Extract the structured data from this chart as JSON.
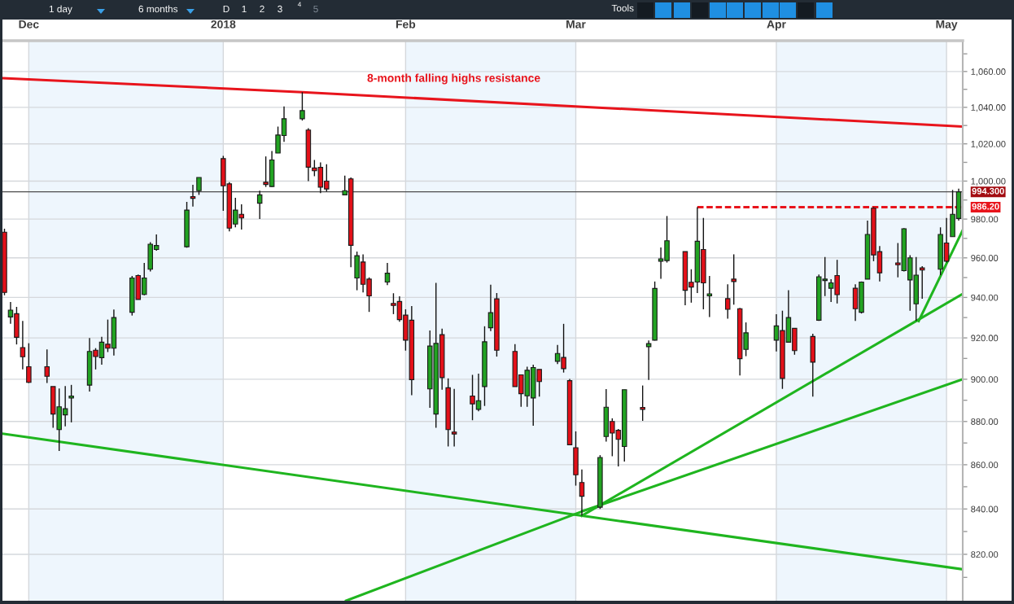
{
  "chart_data": {
    "type": "candlestick",
    "log": true,
    "grid": true,
    "annotations": [
      "1 day",
      "6 months",
      "D",
      "1",
      "2",
      "3",
      "4",
      "5",
      "Tools"
    ],
    "x": [
      "2017-11-27",
      "2017-11-28",
      "2017-11-29",
      "2017-11-30",
      "2017-12-01",
      "2017-12-04",
      "2017-12-05",
      "2017-12-06",
      "2017-12-07",
      "2017-12-08",
      "2017-12-11",
      "2017-12-12",
      "2017-12-13",
      "2017-12-14",
      "2017-12-15",
      "2017-12-18",
      "2017-12-19",
      "2017-12-20",
      "2017-12-21",
      "2017-12-22",
      "2017-12-27",
      "2017-12-28",
      "2017-12-29",
      "2018-01-02",
      "2018-01-03",
      "2018-01-04",
      "2018-01-05",
      "2018-01-08",
      "2018-01-09",
      "2018-01-10",
      "2018-01-11",
      "2018-01-12",
      "2018-01-15",
      "2018-01-16",
      "2018-01-17",
      "2018-01-18",
      "2018-01-19",
      "2018-01-22",
      "2018-01-23",
      "2018-01-24",
      "2018-01-25",
      "2018-01-26",
      "2018-01-29",
      "2018-01-30",
      "2018-01-31",
      "2018-02-01",
      "2018-02-02",
      "2018-02-05",
      "2018-02-06",
      "2018-02-07",
      "2018-02-08",
      "2018-02-09",
      "2018-02-12",
      "2018-02-13",
      "2018-02-14",
      "2018-02-15",
      "2018-02-16",
      "2018-02-19",
      "2018-02-20",
      "2018-02-21",
      "2018-02-22",
      "2018-02-23",
      "2018-02-26",
      "2018-02-27",
      "2018-02-28",
      "2018-03-01",
      "2018-03-02",
      "2018-03-05",
      "2018-03-06",
      "2018-03-07",
      "2018-03-08",
      "2018-03-09",
      "2018-03-12",
      "2018-03-13",
      "2018-03-14",
      "2018-03-15",
      "2018-03-16",
      "2018-03-19",
      "2018-03-20",
      "2018-03-21",
      "2018-03-22",
      "2018-03-23",
      "2018-03-26",
      "2018-03-27",
      "2018-03-28",
      "2018-03-29",
      "2018-04-03",
      "2018-04-04",
      "2018-04-05",
      "2018-04-06",
      "2018-04-09",
      "2018-04-10",
      "2018-04-11",
      "2018-04-12",
      "2018-04-13",
      "2018-04-16",
      "2018-04-17",
      "2018-04-18",
      "2018-04-19",
      "2018-04-20",
      "2018-04-23",
      "2018-04-24",
      "2018-04-25",
      "2018-04-26",
      "2018-04-27",
      "2018-04-30",
      "2018-05-01",
      "2018-05-02",
      "2018-05-03"
    ],
    "ohlc": [
      [
        973.2,
        975.0,
        941.1,
        942.5
      ],
      [
        930.3,
        937.7,
        926.9,
        933.7
      ],
      [
        931.9,
        935.3,
        916.8,
        920.3
      ],
      [
        915.3,
        928.3,
        904.7,
        910.8
      ],
      [
        906.0,
        917.4,
        898.2,
        898.5
      ],
      [
        906.0,
        914.4,
        898.2,
        901.4
      ],
      [
        896.5,
        896.5,
        877.1,
        883.5
      ],
      [
        876.2,
        895.6,
        866.3,
        886.9
      ],
      [
        883.1,
        896.7,
        877.7,
        886.0
      ],
      [
        891.1,
        897.3,
        879.6,
        892.0
      ],
      [
        897.2,
        919.9,
        894.1,
        913.4
      ],
      [
        914.0,
        915.0,
        904.7,
        910.9
      ],
      [
        910.4,
        920.5,
        907.0,
        917.9
      ],
      [
        916.9,
        929.0,
        913.1,
        915.0
      ],
      [
        915.0,
        934.0,
        911.4,
        930.0
      ],
      [
        932.6,
        950.8,
        931.0,
        949.8
      ],
      [
        951.0,
        951.5,
        939.0,
        939.0
      ],
      [
        941.5,
        957.4,
        941.1,
        949.8
      ],
      [
        954.2,
        968.0,
        953.1,
        967.0
      ],
      [
        964.3,
        972.0,
        963.6,
        966.3
      ],
      [
        965.7,
        989.0,
        965.2,
        984.7
      ],
      [
        991.8,
        998.0,
        986.5,
        990.9
      ],
      [
        994.9,
        1001.9,
        992.7,
        1001.9
      ],
      [
        1012.0,
        1013.5,
        984.3,
        997.5
      ],
      [
        998.5,
        999.4,
        973.6,
        975.3
      ],
      [
        977.4,
        991.2,
        975.7,
        984.7
      ],
      [
        982.5,
        987.7,
        974.6,
        980.6
      ],
      [
        988.3,
        994.9,
        980.1,
        992.7
      ],
      [
        999.4,
        1013.2,
        996.9,
        998.2
      ],
      [
        997.1,
        1016.1,
        996.9,
        1011.3
      ],
      [
        1015.0,
        1029.4,
        1015.0,
        1024.8
      ],
      [
        1024.5,
        1040.5,
        1021.1,
        1033.7
      ],
      [
        1033.7,
        1048.4,
        1032.7,
        1038.2
      ],
      [
        1027.5,
        1028.5,
        1000.0,
        1007.4
      ],
      [
        1007.0,
        1011.3,
        1002.6,
        1005.5
      ],
      [
        1007.3,
        1010.0,
        993.6,
        996.8
      ],
      [
        1000.0,
        1009.0,
        994.5,
        995.8
      ],
      [
        992.7,
        1002.9,
        992.7,
        994.9
      ],
      [
        1001.2,
        1001.9,
        955.2,
        966.4
      ],
      [
        949.8,
        963.2,
        943.6,
        961.1
      ],
      [
        957.9,
        961.8,
        942.5,
        946.6
      ],
      [
        949.2,
        950.1,
        932.8,
        940.8
      ],
      [
        947.7,
        957.4,
        946.2,
        952.2
      ],
      [
        937.0,
        942.1,
        931.7,
        936.0
      ],
      [
        938.0,
        940.6,
        927.9,
        929.0
      ],
      [
        931.2,
        934.1,
        913.8,
        918.9
      ],
      [
        928.7,
        935.7,
        892.4,
        899.8
      ],
      [
        895.4,
        923.6,
        886.4,
        916.0
      ],
      [
        883.5,
        947.3,
        877.1,
        917.3
      ],
      [
        921.6,
        924.5,
        895.0,
        900.8
      ],
      [
        895.9,
        900.4,
        868.4,
        876.2
      ],
      [
        875.1,
        895.4,
        868.4,
        874.2
      ],
      [
        892.0,
        902.1,
        880.6,
        888.3
      ],
      [
        885.7,
        902.7,
        884.8,
        889.8
      ],
      [
        896.5,
        925.7,
        887.3,
        918.1
      ],
      [
        925.0,
        946.4,
        923.3,
        932.4
      ],
      [
        939.3,
        942.2,
        910.9,
        914.0
      ],
      [
        913.4,
        917.0,
        896.5,
        896.5
      ],
      [
        902.1,
        902.1,
        886.9,
        893.1
      ],
      [
        892.1,
        906.0,
        886.9,
        904.3
      ],
      [
        891.1,
        907.0,
        878.0,
        905.6
      ],
      [
        904.7,
        904.7,
        891.7,
        898.9
      ],
      [
        908.6,
        916.6,
        907.3,
        912.4
      ],
      [
        910.5,
        926.9,
        903.2,
        905.1
      ],
      [
        899.3,
        900.1,
        869.2,
        869.2
      ],
      [
        867.8,
        875.4,
        850.5,
        855.4
      ],
      [
        851.9,
        857.8,
        837.0,
        845.7
      ],
      [
        840.8,
        864.4,
        840.0,
        863.3
      ],
      [
        873.0,
        895.3,
        870.6,
        886.7
      ],
      [
        880.0,
        881.5,
        863.9,
        874.6
      ],
      [
        875.9,
        876.5,
        859.2,
        871.7
      ],
      [
        868.4,
        895.0,
        861.5,
        895.0
      ],
      [
        886.6,
        897.0,
        880.3,
        885.7
      ],
      [
        915.7,
        918.7,
        899.7,
        917.2
      ],
      [
        918.9,
        948.0,
        918.7,
        944.5
      ],
      [
        958.3,
        965.3,
        949.4,
        959.5
      ],
      [
        958.6,
        981.6,
        957.6,
        968.8
      ],
      [
        963.2,
        963.2,
        936.1,
        943.6
      ],
      [
        947.6,
        954.2,
        937.4,
        945.2
      ],
      [
        947.7,
        986.2,
        942.2,
        968.5
      ],
      [
        964.3,
        980.6,
        934.1,
        947.3
      ],
      [
        940.8,
        950.8,
        930.3,
        941.8
      ],
      [
        939.4,
        946.6,
        929.4,
        934.1
      ],
      [
        949.2,
        961.8,
        936.4,
        948.0
      ],
      [
        934.4,
        934.8,
        901.8,
        909.9
      ],
      [
        914.4,
        927.6,
        911.1,
        922.5
      ],
      [
        918.9,
        931.7,
        913.4,
        925.9
      ],
      [
        923.6,
        933.4,
        895.4,
        900.4
      ],
      [
        917.9,
        943.6,
        917.9,
        930.0
      ],
      [
        924.7,
        924.7,
        911.8,
        913.8
      ],
      [
        920.7,
        922.0,
        891.7,
        908.2
      ],
      [
        928.7,
        951.5,
        928.3,
        950.4
      ],
      [
        948.5,
        960.4,
        940.7,
        949.2
      ],
      [
        944.6,
        949.2,
        937.7,
        947.3
      ],
      [
        951.0,
        959.0,
        937.0,
        941.4
      ],
      [
        944.6,
        946.6,
        928.3,
        934.4
      ],
      [
        932.6,
        948.0,
        932.0,
        947.7
      ],
      [
        949.2,
        979.2,
        949.2,
        972.0
      ],
      [
        985.7,
        986.2,
        958.3,
        961.5
      ],
      [
        963.2,
        966.0,
        948.0,
        952.4
      ],
      [
        957.4,
        967.6,
        950.1,
        956.5
      ],
      [
        953.5,
        975.3,
        953.1,
        975.0
      ],
      [
        948.8,
        961.4,
        933.4,
        960.0
      ],
      [
        936.8,
        960.4,
        928.3,
        951.2
      ],
      [
        954.9,
        955.8,
        939.4,
        953.8
      ],
      [
        954.2,
        975.7,
        951.2,
        972.0
      ],
      [
        967.6,
        980.6,
        957.6,
        958.3
      ],
      [
        970.9,
        995.3,
        970.9,
        982.5
      ],
      [
        980.3,
        996.0,
        979.2,
        994.3
      ]
    ],
    "colors": [
      "#e31019",
      "#22a322",
      "#e31019",
      "#e31019",
      "#e31019",
      "#e31019",
      "#e31019",
      "#22a322",
      "#22a322",
      "#22a322",
      "#22a322",
      "#e31019",
      "#22a322",
      "#e31019",
      "#22a322",
      "#22a322",
      "#e31019",
      "#22a322",
      "#22a322",
      "#22a322",
      "#22a322",
      "#e31019",
      "#22a322",
      "#e31019",
      "#e31019",
      "#22a322",
      "#e31019",
      "#22a322",
      "#e31019",
      "#22a322",
      "#22a322",
      "#22a322",
      "#22a322",
      "#e31019",
      "#e31019",
      "#e31019",
      "#e31019",
      "#22a322",
      "#e31019",
      "#22a322",
      "#e31019",
      "#e31019",
      "#22a322",
      "#e31019",
      "#e31019",
      "#e31019",
      "#e31019",
      "#22a322",
      "#22a322",
      "#e31019",
      "#e31019",
      "#e31019",
      "#e31019",
      "#22a322",
      "#22a322",
      "#22a322",
      "#e31019",
      "#e31019",
      "#e31019",
      "#22a322",
      "#22a322",
      "#e31019",
      "#22a322",
      "#e31019",
      "#e31019",
      "#e31019",
      "#e31019",
      "#22a322",
      "#22a322",
      "#e31019",
      "#e31019",
      "#22a322",
      "#e31019",
      "#22a322",
      "#22a322",
      "#22a322",
      "#22a322",
      "#e31019",
      "#e31019",
      "#22a322",
      "#e31019",
      "#22a322",
      "#e31019",
      "#e31019",
      "#e31019",
      "#22a322",
      "#22a322",
      "#e31019",
      "#22a322",
      "#e31019",
      "#e31019",
      "#22a322",
      "#22a322",
      "#22a322",
      "#e31019",
      "#e31019",
      "#22a322",
      "#22a322",
      "#e31019",
      "#e31019",
      "#e31019",
      "#22a322",
      "#22a322",
      "#22a322",
      "#e31019",
      "#22a322",
      "#e31019",
      "#22a322",
      "#22a322"
    ],
    "series": [
      {
        "type": "line",
        "name": "8-month falling highs resistance",
        "color": "#e8141c",
        "x": [
          "2017-11-26T16:00",
          "2018-01-15",
          "2018-05-03T16:00"
        ],
        "values": [
          1056.3,
          1048.4,
          1029.4
        ]
      },
      {
        "type": "line",
        "color": "#1fb51f",
        "x": [
          "2017-11-26T16:00",
          "2018-03-02",
          "2018-05-03T16:00"
        ],
        "values": [
          874.3,
          837.0,
          813.5
        ]
      },
      {
        "type": "line",
        "color": "#1fb51f",
        "x": [
          "2018-01-22T05:00",
          "2018-03-02",
          "2018-05-03T16:00"
        ],
        "values": [
          800.0,
          838.9,
          900.0
        ]
      },
      {
        "type": "line",
        "color": "#1fb51f",
        "x": [
          "2018-03-02",
          "2018-04-26",
          "2018-05-03T16:00"
        ],
        "values": [
          837.0,
          928.3,
          941.8
        ]
      },
      {
        "type": "line",
        "color": "#1fb51f",
        "x": [
          "2018-04-26T10:00",
          "2018-05-03T16:00"
        ],
        "values": [
          928.3,
          974.2
        ]
      },
      {
        "type": "line",
        "color": "#e8141c",
        "line_style": "dashed",
        "x": [
          "2018-03-21",
          "2018-05-03T16:00"
        ],
        "values": [
          986.2,
          986.2
        ],
        "value_labels": [
          null,
          "986.20"
        ]
      }
    ],
    "ref_lines": [
      {
        "axis": "y",
        "value": 994.3,
        "label": "994.300",
        "color": "#4d4d4d"
      }
    ],
    "bands": [
      {
        "axis": "x",
        "from": "2017-12-01",
        "to": "2018-01-02",
        "color": "#eef6fd"
      },
      {
        "axis": "x",
        "from": "2018-02-01",
        "to": "2018-03-01",
        "color": "#eef6fd"
      },
      {
        "axis": "x",
        "from": "2018-04-03",
        "to": "2018-05-01",
        "color": "#eef6fd"
      }
    ],
    "xlim": [
      "2017-11-26T16:00",
      "2018-05-03T16:00"
    ],
    "xticks": [
      {
        "value": "2017-12-01",
        "label": "Dec"
      },
      {
        "value": "2018-01-02",
        "label": "2018"
      },
      {
        "value": "2018-02-01",
        "label": "Feb"
      },
      {
        "value": "2018-03-01",
        "label": "Mar"
      },
      {
        "value": "2018-04-03",
        "label": "Apr"
      },
      {
        "value": "2018-05-01",
        "label": "May"
      }
    ],
    "ylim": [
      800,
      1077.5
    ],
    "yticks": [
      {
        "value": 810,
        "label": null
      },
      {
        "value": 820,
        "label": "820.00"
      },
      {
        "value": 830,
        "label": null
      },
      {
        "value": 840,
        "label": "840.00"
      },
      {
        "value": 850,
        "label": null
      },
      {
        "value": 860,
        "label": "860.00"
      },
      {
        "value": 870,
        "label": null
      },
      {
        "value": 880,
        "label": "880.00"
      },
      {
        "value": 890,
        "label": null
      },
      {
        "value": 900,
        "label": "900.00"
      },
      {
        "value": 910,
        "label": null
      },
      {
        "value": 920,
        "label": "920.00"
      },
      {
        "value": 930,
        "label": null
      },
      {
        "value": 940,
        "label": "940.00"
      },
      {
        "value": 950,
        "label": null
      },
      {
        "value": 960,
        "label": "960.00"
      },
      {
        "value": 970,
        "label": null
      },
      {
        "value": 980,
        "label": "980.00"
      },
      {
        "value": 990,
        "label": null
      },
      {
        "value": 1000,
        "label": "1,000.00"
      },
      {
        "value": 1010,
        "label": null
      },
      {
        "value": 1020,
        "label": "1,020.00"
      },
      {
        "value": 1030,
        "label": null
      },
      {
        "value": 1040,
        "label": "1,040.00"
      },
      {
        "value": 1050,
        "label": null
      },
      {
        "value": 1060,
        "label": "1,060.00"
      },
      {
        "value": 1070,
        "label": null
      }
    ]
  }
}
